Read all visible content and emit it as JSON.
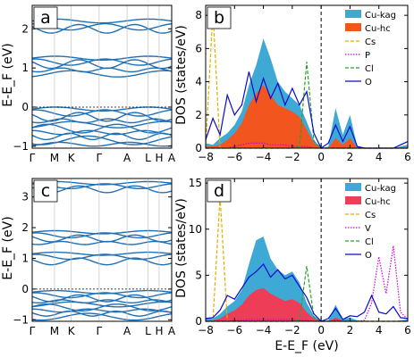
{
  "colors": {
    "band": "#1f6fb5",
    "cu_kag": "#3fa9d6",
    "cu_hc": "#f2551d",
    "cu_hc_d": "#ee3d56",
    "cs": "#e0b000",
    "p": "#d400d4",
    "v": "#d400d4",
    "cl": "#2ca02c",
    "o": "#0a0acc"
  },
  "chart_data": [
    {
      "panel": "a",
      "type": "line",
      "ylabel": "E-E_F (eV)",
      "ylim": [
        -1.05,
        2.6
      ],
      "yticks": [
        -1,
        0,
        1,
        2
      ],
      "kpath": [
        "Γ",
        "M",
        "K",
        "Γ",
        "A",
        "L",
        "H",
        "A"
      ],
      "band_groups": [
        {
          "name": "upper",
          "centers": [
            2.2,
            2.05,
            2.0
          ]
        },
        {
          "name": "middle",
          "centers": [
            1.25,
            1.15,
            1.1,
            0.95,
            0.85
          ]
        },
        {
          "name": "lower",
          "centers": [
            -0.05,
            -0.15,
            -0.25,
            -0.35,
            -0.45,
            -0.55,
            -0.65,
            -0.75,
            -0.85,
            -0.95
          ]
        }
      ],
      "fermi_line": 0
    },
    {
      "panel": "b",
      "type": "area",
      "xlabel": "",
      "ylabel": "DOS (states/eV)",
      "xlim": [
        -8,
        6
      ],
      "ylim": [
        0,
        8.6
      ],
      "xticks": [
        -8,
        -6,
        -4,
        -2,
        0,
        2,
        4,
        6
      ],
      "yticks": [
        0,
        2,
        4,
        6,
        8
      ],
      "fermi_line": 0,
      "legend_position": "top-right",
      "x": [
        -8.0,
        -7.5,
        -7.0,
        -6.5,
        -6.0,
        -5.5,
        -5.0,
        -4.5,
        -4.0,
        -3.5,
        -3.0,
        -2.5,
        -2.0,
        -1.5,
        -1.0,
        -0.5,
        0.0,
        0.5,
        1.0,
        1.5,
        2.0,
        2.5,
        3.0,
        3.5,
        4.0,
        4.5,
        5.0,
        5.5,
        6.0
      ],
      "series": [
        {
          "name": "Cu-kag",
          "style": "fill",
          "values": [
            0.3,
            0.2,
            0.6,
            0.9,
            1.4,
            2.2,
            3.8,
            5.0,
            6.6,
            5.4,
            4.0,
            3.4,
            3.0,
            2.6,
            1.6,
            0.5,
            0.0,
            0.1,
            2.4,
            0.8,
            2.0,
            0.1,
            0.0,
            0.0,
            0.0,
            0.0,
            0.0,
            0.1,
            0.2
          ]
        },
        {
          "name": "Cu-hc",
          "style": "fill",
          "values": [
            0.1,
            0.1,
            0.2,
            0.5,
            0.9,
            1.5,
            2.6,
            3.3,
            3.8,
            3.2,
            2.6,
            2.4,
            2.2,
            1.9,
            1.1,
            0.3,
            0.0,
            0.0,
            0.6,
            0.2,
            0.6,
            0.0,
            0.0,
            0.0,
            0.0,
            0.0,
            0.0,
            0.0,
            0.0
          ]
        },
        {
          "name": "Cs",
          "style": "dashed",
          "values": [
            0.0,
            8.3,
            0.0,
            0.0,
            0.0,
            0.0,
            0.0,
            0.0,
            0.0,
            0.0,
            0.0,
            0.0,
            0.0,
            0.0,
            0.0,
            0.0,
            0.0,
            0.0,
            0.0,
            0.0,
            0.0,
            0.0,
            0.0,
            0.0,
            0.0,
            0.0,
            0.0,
            0.0,
            0.0
          ]
        },
        {
          "name": "P",
          "style": "dotted",
          "values": [
            0.0,
            0.0,
            0.0,
            0.0,
            0.1,
            0.2,
            0.3,
            0.3,
            0.3,
            0.2,
            0.2,
            0.2,
            0.1,
            0.1,
            0.1,
            0.0,
            0.0,
            0.0,
            0.0,
            0.0,
            0.0,
            0.0,
            0.0,
            0.0,
            0.0,
            0.0,
            0.0,
            0.0,
            0.0
          ]
        },
        {
          "name": "Cl",
          "style": "dashed",
          "values": [
            0.0,
            0.0,
            0.0,
            0.0,
            0.0,
            0.0,
            0.0,
            0.0,
            0.0,
            0.0,
            0.0,
            0.0,
            0.0,
            0.1,
            5.2,
            0.4,
            0.0,
            0.0,
            0.0,
            0.0,
            0.0,
            0.0,
            0.0,
            0.0,
            0.0,
            0.0,
            0.0,
            0.0,
            0.0
          ]
        },
        {
          "name": "O",
          "style": "solid",
          "values": [
            0.5,
            1.8,
            0.8,
            3.2,
            2.0,
            2.6,
            4.6,
            2.8,
            4.2,
            3.0,
            3.9,
            2.6,
            3.6,
            2.6,
            3.4,
            0.9,
            0.0,
            0.3,
            1.4,
            0.4,
            1.3,
            0.1,
            0.0,
            0.0,
            0.0,
            0.0,
            0.0,
            0.2,
            0.4
          ]
        }
      ]
    },
    {
      "panel": "c",
      "type": "line",
      "ylabel": "E-E_F (eV)",
      "ylim": [
        -1.05,
        3.6
      ],
      "yticks": [
        -1,
        0,
        1,
        2,
        3
      ],
      "kpath": [
        "Γ",
        "M",
        "K",
        "Γ",
        "A",
        "L",
        "H",
        "A"
      ],
      "band_groups": [
        {
          "name": "top",
          "centers": [
            3.45,
            3.35,
            3.25
          ]
        },
        {
          "name": "upper",
          "centers": [
            1.85,
            1.75,
            1.65,
            1.5
          ]
        },
        {
          "name": "middle",
          "centers": [
            1.15,
            1.05,
            0.9
          ]
        },
        {
          "name": "lower",
          "centers": [
            -0.1,
            -0.2,
            -0.3,
            -0.4,
            -0.5,
            -0.6,
            -0.7,
            -0.8,
            -0.9
          ]
        }
      ],
      "fermi_line": 0
    },
    {
      "panel": "d",
      "type": "area",
      "xlabel": "E-E_F (eV)",
      "ylabel": "DOS (states/eV)",
      "xlim": [
        -8,
        6
      ],
      "ylim": [
        0,
        15.5
      ],
      "xticks": [
        -8,
        -6,
        -4,
        -2,
        0,
        2,
        4,
        6
      ],
      "yticks": [
        0,
        5,
        10,
        15
      ],
      "fermi_line": 0,
      "legend_position": "top-right",
      "x": [
        -8.0,
        -7.5,
        -7.0,
        -6.5,
        -6.0,
        -5.5,
        -5.0,
        -4.5,
        -4.0,
        -3.5,
        -3.0,
        -2.5,
        -2.0,
        -1.5,
        -1.0,
        -0.5,
        0.0,
        0.5,
        1.0,
        1.5,
        2.0,
        2.5,
        3.0,
        3.5,
        4.0,
        4.5,
        5.0,
        5.5,
        6.0
      ],
      "series": [
        {
          "name": "Cu-kag",
          "style": "fill",
          "values": [
            0.3,
            0.3,
            0.8,
            1.6,
            2.2,
            3.4,
            6.2,
            8.8,
            9.2,
            6.8,
            5.6,
            5.0,
            5.4,
            4.2,
            2.0,
            0.6,
            0.0,
            0.1,
            1.8,
            0.3,
            0.4,
            0.1,
            0.0,
            0.0,
            0.0,
            0.0,
            0.0,
            0.1,
            0.2
          ]
        },
        {
          "name": "Cu-hc",
          "style": "fill",
          "values": [
            0.1,
            0.1,
            0.3,
            0.8,
            1.2,
            1.8,
            2.8,
            3.4,
            3.6,
            3.0,
            2.6,
            2.2,
            2.4,
            2.0,
            1.0,
            0.3,
            0.0,
            0.0,
            0.4,
            0.1,
            0.1,
            0.0,
            0.0,
            0.0,
            0.0,
            0.0,
            0.0,
            0.0,
            0.0
          ]
        },
        {
          "name": "Cs",
          "style": "dashed",
          "values": [
            0.0,
            0.0,
            13.6,
            0.0,
            0.0,
            0.0,
            0.0,
            0.0,
            0.0,
            0.0,
            0.0,
            0.0,
            0.0,
            0.0,
            0.0,
            0.0,
            0.0,
            0.0,
            0.0,
            0.0,
            0.0,
            0.0,
            0.0,
            0.0,
            0.0,
            0.0,
            0.0,
            0.0,
            0.0
          ]
        },
        {
          "name": "V",
          "style": "dotted",
          "values": [
            0.0,
            0.0,
            0.0,
            0.0,
            0.1,
            0.1,
            0.2,
            0.2,
            0.2,
            0.2,
            0.2,
            0.2,
            0.2,
            0.1,
            0.1,
            0.0,
            0.0,
            0.0,
            0.1,
            0.0,
            0.0,
            0.0,
            0.1,
            2.0,
            7.0,
            3.0,
            8.2,
            1.0,
            0.2
          ]
        },
        {
          "name": "Cl",
          "style": "dashed",
          "values": [
            0.0,
            0.0,
            0.0,
            0.0,
            0.0,
            0.0,
            0.0,
            0.0,
            0.0,
            0.0,
            0.0,
            0.0,
            0.0,
            0.2,
            6.0,
            0.4,
            0.0,
            0.0,
            0.0,
            0.0,
            0.0,
            0.0,
            0.0,
            0.0,
            0.0,
            0.0,
            0.0,
            0.0,
            0.0
          ]
        },
        {
          "name": "O",
          "style": "solid",
          "values": [
            0.3,
            0.4,
            1.2,
            2.8,
            2.4,
            3.6,
            4.8,
            5.4,
            6.2,
            4.8,
            5.6,
            4.6,
            5.0,
            3.8,
            2.6,
            0.8,
            0.0,
            0.3,
            1.4,
            0.2,
            0.6,
            0.5,
            1.0,
            2.8,
            1.0,
            0.8,
            1.6,
            0.4,
            0.3
          ]
        }
      ]
    }
  ]
}
